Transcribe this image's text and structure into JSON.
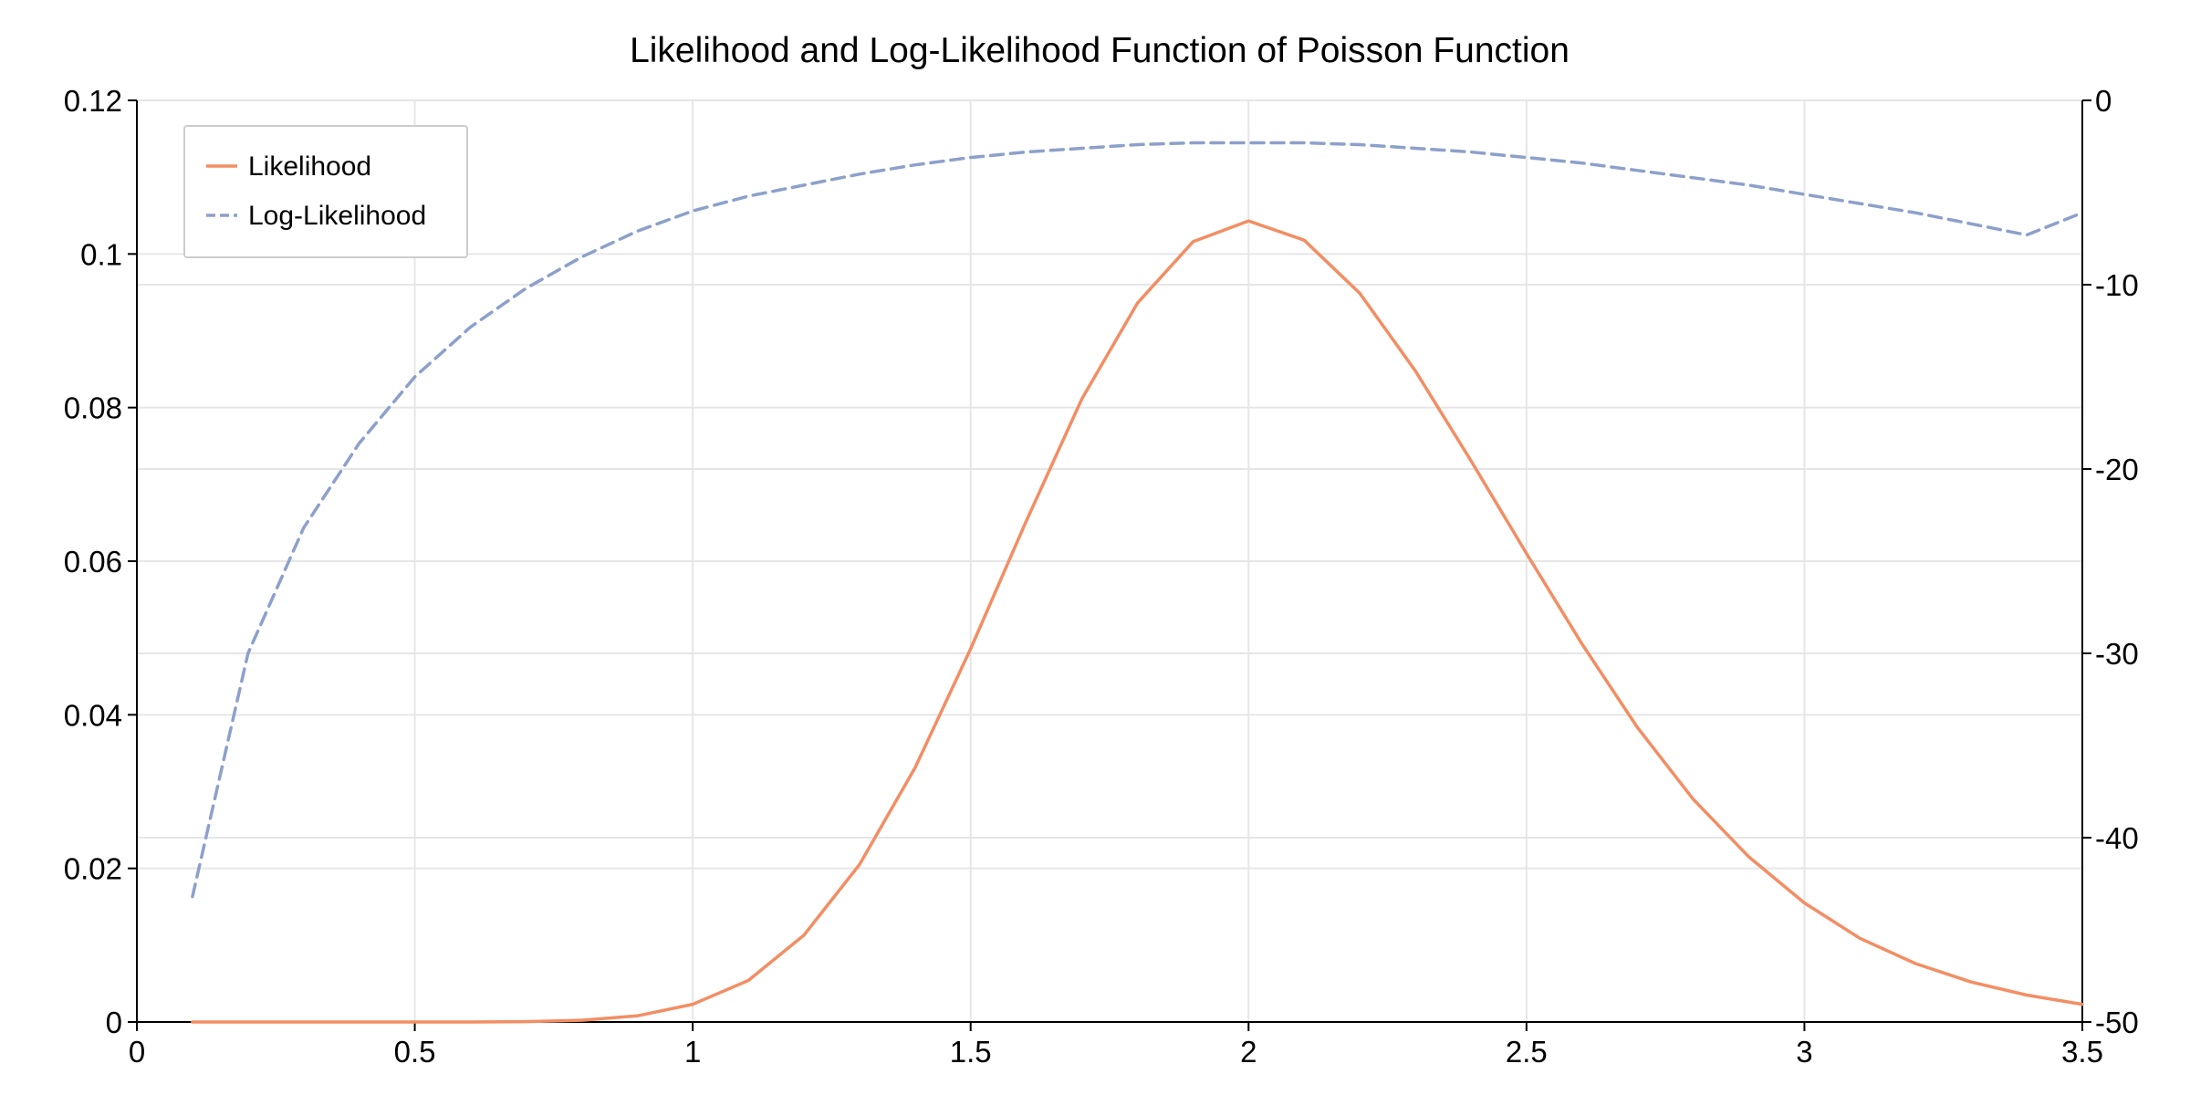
{
  "chart_data": {
    "type": "line",
    "title": "Likelihood and Log-Likelihood Function of Poisson Function",
    "xlabel": "",
    "ylabel": "",
    "y2label": "",
    "xlim": [
      0,
      3.5
    ],
    "ylim": [
      0,
      0.12
    ],
    "y2lim": [
      -50,
      0
    ],
    "x_ticks": [
      "0",
      "0.5",
      "1",
      "1.5",
      "2",
      "2.5",
      "3",
      "3.5"
    ],
    "y_ticks": [
      "0",
      "0.02",
      "0.04",
      "0.06",
      "0.08",
      "0.1",
      "0.12"
    ],
    "y2_ticks": [
      "-50",
      "-40",
      "-30",
      "-20",
      "-10",
      "0"
    ],
    "grid": true,
    "legend_position": "top-left",
    "x": [
      0.1,
      0.2,
      0.3,
      0.4,
      0.5,
      0.6,
      0.7,
      0.8,
      0.9,
      1.0,
      1.1,
      1.2,
      1.3,
      1.4,
      1.5,
      1.6,
      1.7,
      1.8,
      1.9,
      2.0,
      2.1,
      2.2,
      2.3,
      2.4,
      2.5,
      2.6,
      2.7,
      2.8,
      2.9,
      3.0,
      3.1,
      3.2,
      3.3,
      3.4,
      3.5
    ],
    "series": [
      {
        "name": "Likelihood",
        "axis": "left",
        "color": "#f28e64",
        "dash": "solid",
        "values": [
          0.0,
          0.0,
          0.0,
          0.0,
          0.0,
          0.0,
          5e-05,
          0.00022,
          0.0008,
          0.0023,
          0.0054,
          0.0113,
          0.0205,
          0.0331,
          0.0486,
          0.0652,
          0.0811,
          0.0936,
          0.1016,
          0.1043,
          0.1018,
          0.0949,
          0.0848,
          0.0731,
          0.061,
          0.0492,
          0.0383,
          0.029,
          0.0215,
          0.0155,
          0.0109,
          0.0076,
          0.0052,
          0.0035,
          0.0023
        ]
      },
      {
        "name": "Log-Likelihood",
        "axis": "right",
        "color": "#8da0cb",
        "dash": "dashed",
        "values": [
          -43.2,
          -30.0,
          -23.2,
          -18.6,
          -15.0,
          -12.3,
          -10.2,
          -8.5,
          -7.1,
          -6.0,
          -5.2,
          -4.6,
          -4.0,
          -3.5,
          -3.1,
          -2.8,
          -2.6,
          -2.4,
          -2.3,
          -2.3,
          -2.3,
          -2.4,
          -2.6,
          -2.8,
          -3.1,
          -3.4,
          -3.8,
          -4.2,
          -4.6,
          -5.1,
          -5.6,
          -6.1,
          -6.7,
          -7.3,
          -6.1
        ]
      }
    ]
  }
}
